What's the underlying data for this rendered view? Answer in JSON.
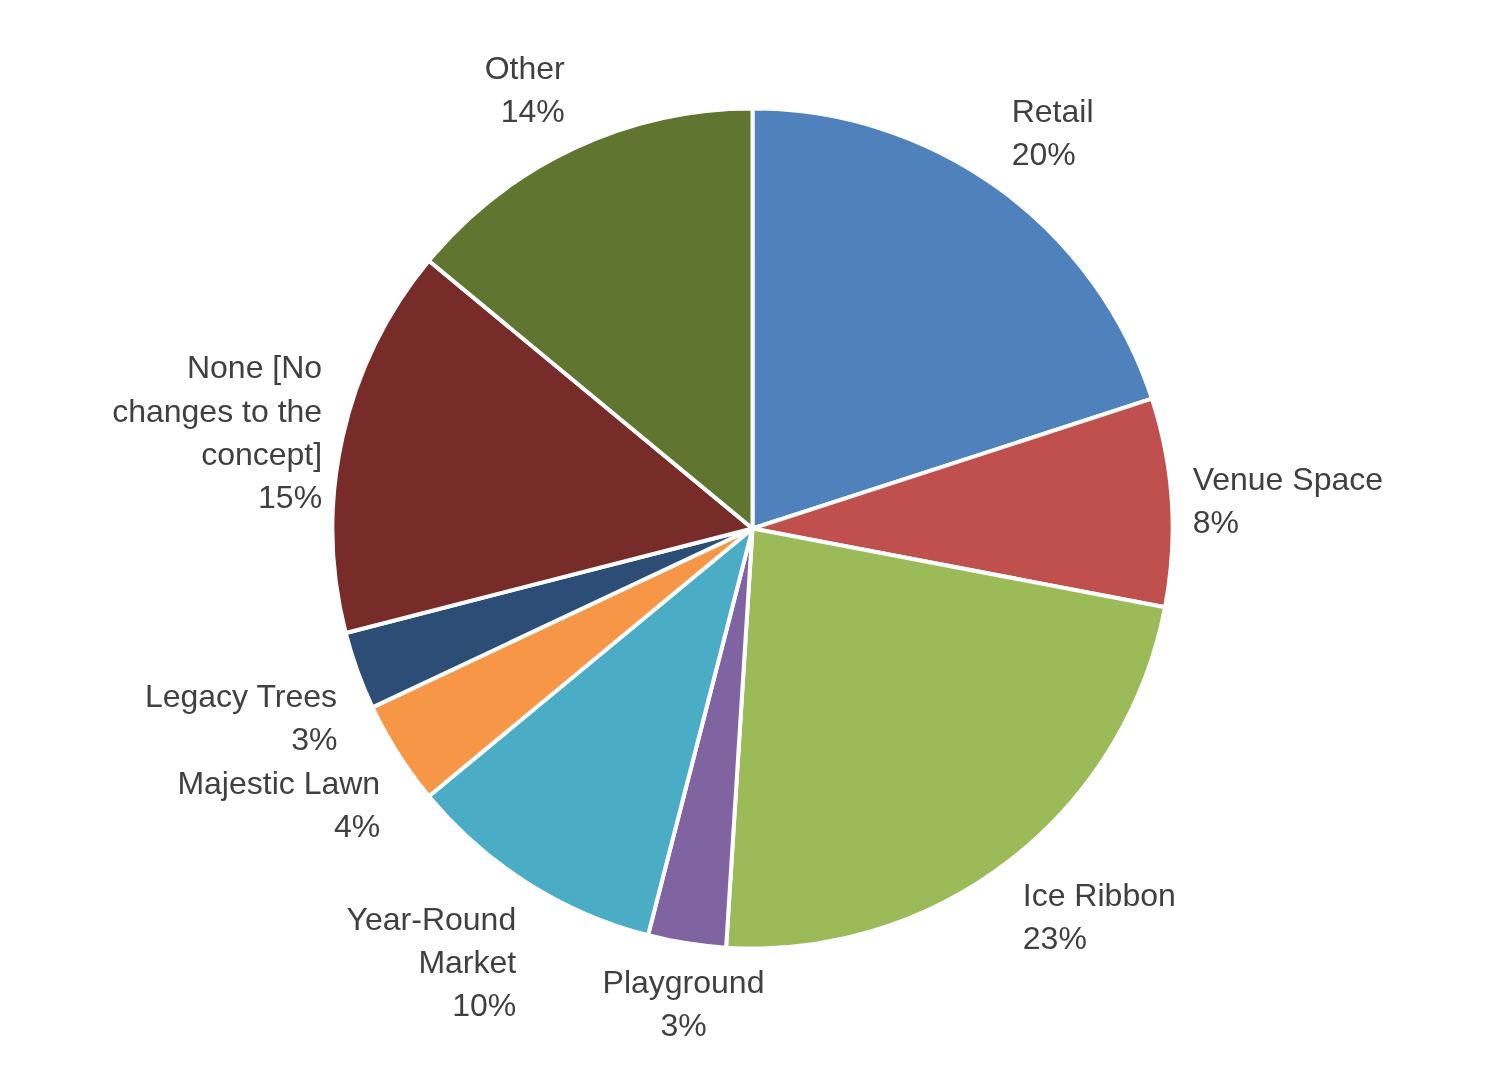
{
  "chart_data": {
    "type": "pie",
    "categories": [
      "Retail",
      "Venue Space",
      "Ice Ribbon",
      "Playground",
      "Year-Round Market",
      "Majestic Lawn",
      "Legacy Trees",
      "None [No changes to the concept]",
      "Other"
    ],
    "values": [
      20,
      8,
      23,
      3,
      10,
      4,
      3,
      15,
      14
    ],
    "value_labels": [
      "20%",
      "8%",
      "23%",
      "3%",
      "10%",
      "4%",
      "3%",
      "15%",
      "14%"
    ],
    "colors": [
      "#4f81bd",
      "#c0504d",
      "#9bbb59",
      "#8064a2",
      "#4bacc6",
      "#f79646",
      "#2c4d75",
      "#772c2a",
      "#5f7530"
    ]
  }
}
